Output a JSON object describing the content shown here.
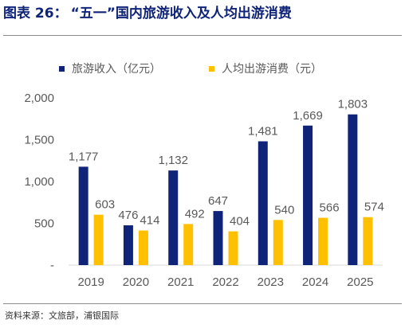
{
  "header": {
    "label": "图表 26：",
    "title": "“五一”国内旅游收入及人均出游消费"
  },
  "colors": {
    "series1": "#0f2478",
    "series2": "#ffc000",
    "title": "#0f2478",
    "axis_text": "#595959"
  },
  "chart_data": {
    "type": "bar",
    "categories": [
      "2019",
      "2020",
      "2021",
      "2022",
      "2023",
      "2024",
      "2025"
    ],
    "series": [
      {
        "name": "旅游收入（亿元）",
        "values": [
          1177,
          476,
          1132,
          647,
          1481,
          1669,
          1803
        ],
        "labels": [
          "1,177",
          "476",
          "1,132",
          "647",
          "1,481",
          "1,669",
          "1,803"
        ]
      },
      {
        "name": "人均出游消费（元）",
        "values": [
          603,
          414,
          492,
          404,
          540,
          566,
          574
        ],
        "labels": [
          "603",
          "414",
          "492",
          "404",
          "540",
          "566",
          "574"
        ]
      }
    ],
    "ylim": [
      0,
      2000
    ],
    "yticks": [
      0,
      500,
      1000,
      1500,
      2000
    ],
    "ytick_labels": [
      "-",
      "500",
      "1,000",
      "1,500",
      "2,000"
    ],
    "legend": "top",
    "grid": false
  },
  "footer": {
    "source": "资料来源：文旅部，浦银国际"
  }
}
